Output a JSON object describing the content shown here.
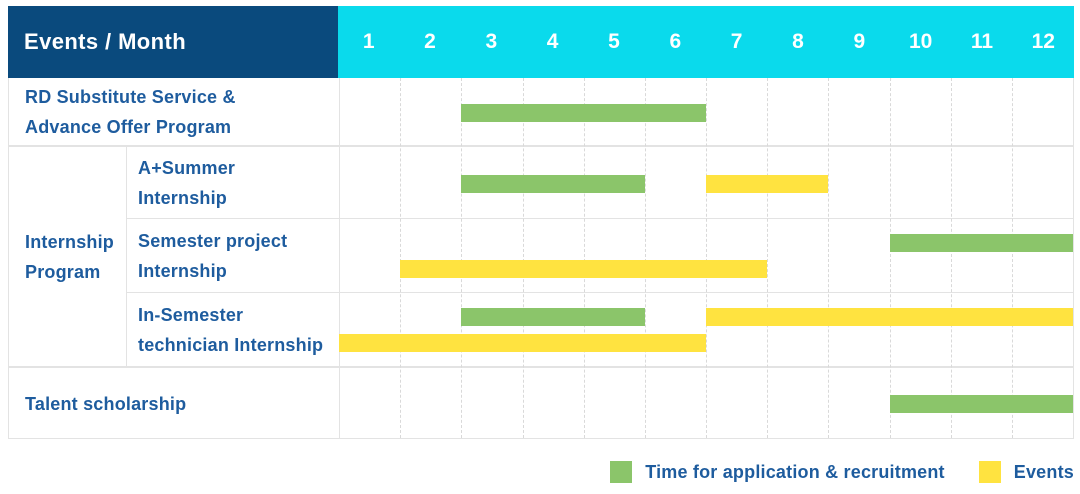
{
  "header": {
    "title": "Events / Month",
    "months": [
      "1",
      "2",
      "3",
      "4",
      "5",
      "6",
      "7",
      "8",
      "9",
      "10",
      "11",
      "12"
    ]
  },
  "colors": {
    "navy": "#0A4A7D",
    "cyan": "#0ADAEC",
    "green": "#8BC56A",
    "yellow": "#FFE340",
    "blue": "#1E5C9E",
    "grid": "#E3E3E3",
    "dash": "#D9D9D9"
  },
  "legend": [
    {
      "series": "recruitment",
      "label": "Time for application & recruitment"
    },
    {
      "series": "events",
      "label": "Events"
    }
  ],
  "chart_data": {
    "type": "gantt",
    "title": "Events / Month",
    "x_axis": {
      "label": "Month",
      "ticks": [
        "1",
        "2",
        "3",
        "4",
        "5",
        "6",
        "7",
        "8",
        "9",
        "10",
        "11",
        "12"
      ],
      "range": [
        1,
        12
      ]
    },
    "series_legend": [
      {
        "series": "recruitment",
        "color": "#8BC56A",
        "label": "Time for application & recruitment"
      },
      {
        "series": "events",
        "color": "#FFE340",
        "label": "Events"
      }
    ],
    "group_label_lines": [
      "Internship",
      "Program"
    ],
    "rows": [
      {
        "id": "rd-substitute-service",
        "group": null,
        "label_lines": [
          "RD Substitute Service &",
          "Advance Offer Program"
        ],
        "bars": [
          {
            "series": "recruitment",
            "start_month": 3,
            "end_month": 6,
            "line": "center"
          }
        ]
      },
      {
        "id": "a-plus-summer-internship",
        "group": "Internship Program",
        "label_lines": [
          "A+Summer",
          "Internship"
        ],
        "bars": [
          {
            "series": "recruitment",
            "start_month": 3,
            "end_month": 5,
            "line": "center"
          },
          {
            "series": "events",
            "start_month": 7,
            "end_month": 8,
            "line": "center"
          }
        ]
      },
      {
        "id": "semester-project-internship",
        "group": "Internship Program",
        "label_lines": [
          "Semester project",
          "Internship"
        ],
        "bars": [
          {
            "series": "recruitment",
            "start_month": 10,
            "end_month": 12,
            "line": "top"
          },
          {
            "series": "events",
            "start_month": 2,
            "end_month": 7,
            "line": "bottom"
          }
        ]
      },
      {
        "id": "in-semester-technician-internship",
        "group": "Internship Program",
        "label_lines": [
          "In-Semester",
          "technician Internship"
        ],
        "bars": [
          {
            "series": "recruitment",
            "start_month": 3,
            "end_month": 5,
            "line": "top"
          },
          {
            "series": "events",
            "start_month": 7,
            "end_month": 12,
            "line": "top"
          },
          {
            "series": "events",
            "start_month": 1,
            "end_month": 6,
            "line": "bottom"
          }
        ]
      },
      {
        "id": "talent-scholarship",
        "group": null,
        "label_lines": [
          "Talent scholarship"
        ],
        "bars": [
          {
            "series": "recruitment",
            "start_month": 10,
            "end_month": 12,
            "line": "center"
          }
        ]
      }
    ]
  }
}
